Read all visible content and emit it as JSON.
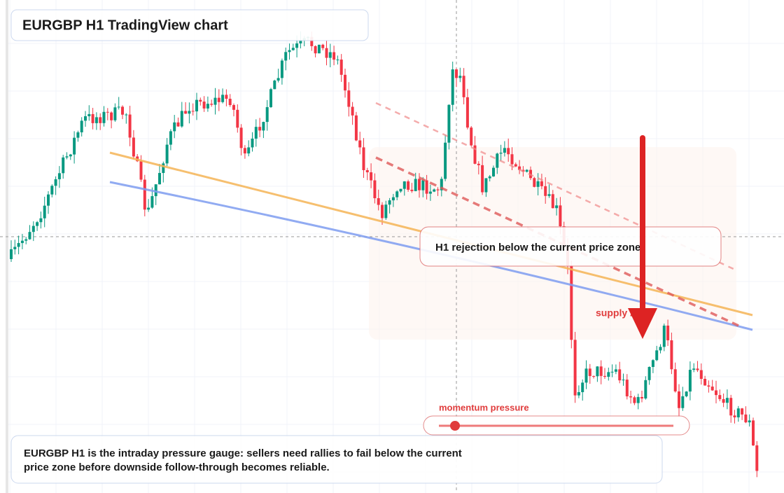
{
  "header": {
    "title": "EURGBP H1 TradingView chart"
  },
  "annotations": {
    "rejection": "H1 rejection below the current price zone",
    "supply": "supply zone",
    "momentum": "momentum pressure"
  },
  "caption": {
    "lines": [
      "EURGBP H1 is the intraday pressure gauge: sellers need rallies to fail below the current",
      "price zone before downside follow-through becomes reliable."
    ]
  }
}
